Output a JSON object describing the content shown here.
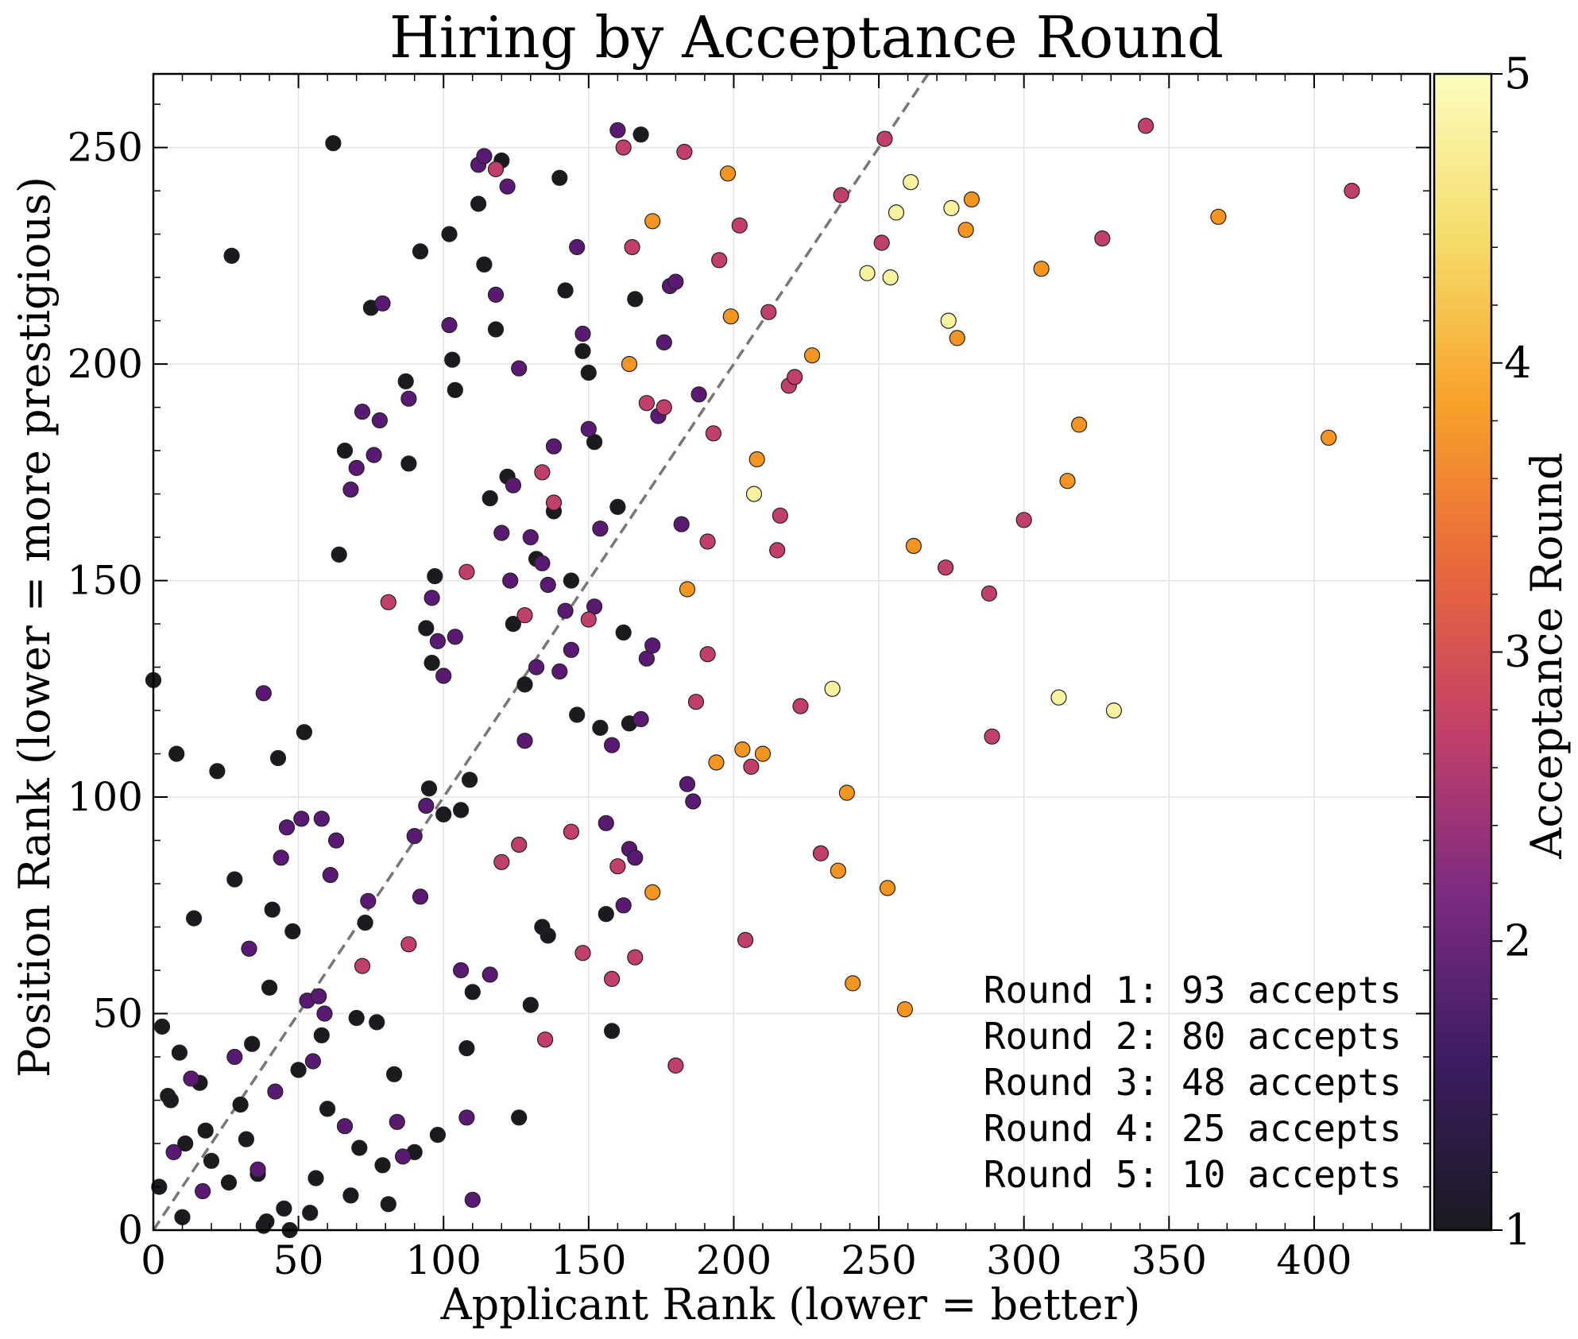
{
  "chart_data": {
    "type": "scatter",
    "title": "Hiring by Acceptance Round",
    "xlabel": "Applicant Rank (lower = better)",
    "ylabel": "Position Rank (lower = more prestigious)",
    "xlim": [
      0,
      440
    ],
    "ylim": [
      0,
      267
    ],
    "x_ticks": [
      0,
      50,
      100,
      150,
      200,
      250,
      300,
      350,
      400
    ],
    "y_ticks": [
      0,
      50,
      100,
      150,
      200,
      250
    ],
    "grid": true,
    "reference_line": {
      "style": "dashed",
      "description": "y = x diagonal"
    },
    "colorbar": {
      "label": "Acceptance Round",
      "range": [
        1,
        5
      ],
      "ticks": [
        1,
        2,
        3,
        4,
        5
      ],
      "colormap": "inferno",
      "stops": [
        "#1a1a1f",
        "#3b1c61",
        "#7a2a82",
        "#c13f6a",
        "#e8673c",
        "#f8a12a",
        "#f5dc6a",
        "#fcfdbf"
      ]
    },
    "annotation": [
      "Round 1: 93 accepts",
      "Round 2: 80 accepts",
      "Round 3: 48 accepts",
      "Round 4: 25 accepts",
      "Round 5: 10 accepts"
    ],
    "series": [
      {
        "round": 1,
        "color": "#1a1a1f",
        "points": [
          [
            0,
            127
          ],
          [
            3,
            47
          ],
          [
            2,
            10
          ],
          [
            5,
            31
          ],
          [
            6,
            30
          ],
          [
            9,
            41
          ],
          [
            11,
            20
          ],
          [
            10,
            3
          ],
          [
            14,
            72
          ],
          [
            16,
            34
          ],
          [
            18,
            23
          ],
          [
            20,
            16
          ],
          [
            22,
            106
          ],
          [
            26,
            11
          ],
          [
            28,
            81
          ],
          [
            30,
            29
          ],
          [
            32,
            21
          ],
          [
            34,
            43
          ],
          [
            36,
            13
          ],
          [
            38,
            1
          ],
          [
            39,
            2
          ],
          [
            40,
            56
          ],
          [
            41,
            74
          ],
          [
            43,
            109
          ],
          [
            45,
            5
          ],
          [
            47,
            0
          ],
          [
            48,
            69
          ],
          [
            50,
            37
          ],
          [
            52,
            115
          ],
          [
            54,
            4
          ],
          [
            56,
            12
          ],
          [
            58,
            45
          ],
          [
            60,
            28
          ],
          [
            62,
            251
          ],
          [
            64,
            156
          ],
          [
            66,
            180
          ],
          [
            68,
            8
          ],
          [
            70,
            49
          ],
          [
            71,
            19
          ],
          [
            73,
            71
          ],
          [
            75,
            213
          ],
          [
            77,
            48
          ],
          [
            79,
            15
          ],
          [
            81,
            6
          ],
          [
            83,
            36
          ],
          [
            87,
            196
          ],
          [
            88,
            177
          ],
          [
            90,
            18
          ],
          [
            92,
            226
          ],
          [
            94,
            139
          ],
          [
            95,
            102
          ],
          [
            96,
            131
          ],
          [
            97,
            151
          ],
          [
            98,
            22
          ],
          [
            100,
            96
          ],
          [
            102,
            230
          ],
          [
            103,
            201
          ],
          [
            104,
            194
          ],
          [
            106,
            97
          ],
          [
            108,
            42
          ],
          [
            109,
            104
          ],
          [
            110,
            55
          ],
          [
            112,
            237
          ],
          [
            114,
            223
          ],
          [
            116,
            169
          ],
          [
            118,
            208
          ],
          [
            120,
            247
          ],
          [
            122,
            174
          ],
          [
            124,
            140
          ],
          [
            126,
            26
          ],
          [
            128,
            126
          ],
          [
            130,
            52
          ],
          [
            132,
            155
          ],
          [
            134,
            70
          ],
          [
            136,
            68
          ],
          [
            138,
            166
          ],
          [
            140,
            243
          ],
          [
            142,
            217
          ],
          [
            144,
            150
          ],
          [
            146,
            119
          ],
          [
            148,
            203
          ],
          [
            150,
            198
          ],
          [
            152,
            182
          ],
          [
            154,
            116
          ],
          [
            156,
            73
          ],
          [
            158,
            46
          ],
          [
            160,
            167
          ],
          [
            162,
            138
          ],
          [
            164,
            117
          ],
          [
            166,
            215
          ],
          [
            168,
            253
          ],
          [
            27,
            225
          ],
          [
            8,
            110
          ]
        ]
      },
      {
        "round": 2,
        "color": "#5a1a73",
        "points": [
          [
            13,
            35
          ],
          [
            28,
            40
          ],
          [
            33,
            65
          ],
          [
            38,
            124
          ],
          [
            42,
            32
          ],
          [
            46,
            93
          ],
          [
            51,
            95
          ],
          [
            53,
            53
          ],
          [
            55,
            39
          ],
          [
            57,
            54
          ],
          [
            59,
            50
          ],
          [
            61,
            82
          ],
          [
            63,
            90
          ],
          [
            66,
            24
          ],
          [
            68,
            171
          ],
          [
            70,
            176
          ],
          [
            72,
            189
          ],
          [
            74,
            76
          ],
          [
            76,
            179
          ],
          [
            78,
            187
          ],
          [
            79,
            214
          ],
          [
            84,
            25
          ],
          [
            86,
            17
          ],
          [
            88,
            192
          ],
          [
            90,
            91
          ],
          [
            92,
            77
          ],
          [
            94,
            98
          ],
          [
            96,
            146
          ],
          [
            98,
            136
          ],
          [
            100,
            128
          ],
          [
            102,
            209
          ],
          [
            104,
            137
          ],
          [
            106,
            60
          ],
          [
            108,
            26
          ],
          [
            110,
            7
          ],
          [
            112,
            246
          ],
          [
            114,
            248
          ],
          [
            116,
            59
          ],
          [
            118,
            216
          ],
          [
            120,
            161
          ],
          [
            122,
            241
          ],
          [
            124,
            172
          ],
          [
            126,
            199
          ],
          [
            128,
            113
          ],
          [
            130,
            160
          ],
          [
            132,
            130
          ],
          [
            134,
            154
          ],
          [
            136,
            149
          ],
          [
            138,
            181
          ],
          [
            140,
            129
          ],
          [
            142,
            143
          ],
          [
            144,
            134
          ],
          [
            146,
            227
          ],
          [
            148,
            207
          ],
          [
            150,
            185
          ],
          [
            152,
            144
          ],
          [
            154,
            162
          ],
          [
            156,
            94
          ],
          [
            158,
            112
          ],
          [
            160,
            254
          ],
          [
            162,
            75
          ],
          [
            164,
            88
          ],
          [
            166,
            86
          ],
          [
            168,
            118
          ],
          [
            170,
            132
          ],
          [
            172,
            135
          ],
          [
            174,
            188
          ],
          [
            176,
            205
          ],
          [
            178,
            218
          ],
          [
            180,
            219
          ],
          [
            182,
            163
          ],
          [
            184,
            103
          ],
          [
            186,
            99
          ],
          [
            188,
            193
          ],
          [
            17,
            9
          ],
          [
            36,
            14
          ],
          [
            58,
            95
          ],
          [
            123,
            150
          ],
          [
            7,
            18
          ],
          [
            44,
            86
          ]
        ]
      },
      {
        "round": 3,
        "color": "#c13f6a",
        "points": [
          [
            72,
            61
          ],
          [
            81,
            145
          ],
          [
            88,
            66
          ],
          [
            108,
            152
          ],
          [
            120,
            85
          ],
          [
            118,
            245
          ],
          [
            126,
            89
          ],
          [
            128,
            142
          ],
          [
            134,
            175
          ],
          [
            135,
            44
          ],
          [
            138,
            168
          ],
          [
            144,
            92
          ],
          [
            148,
            64
          ],
          [
            150,
            141
          ],
          [
            158,
            58
          ],
          [
            160,
            84
          ],
          [
            162,
            250
          ],
          [
            166,
            63
          ],
          [
            170,
            191
          ],
          [
            176,
            190
          ],
          [
            180,
            38
          ],
          [
            183,
            249
          ],
          [
            187,
            122
          ],
          [
            191,
            133
          ],
          [
            193,
            184
          ],
          [
            195,
            224
          ],
          [
            202,
            232
          ],
          [
            204,
            67
          ],
          [
            206,
            107
          ],
          [
            212,
            212
          ],
          [
            215,
            157
          ],
          [
            216,
            165
          ],
          [
            219,
            195
          ],
          [
            221,
            197
          ],
          [
            223,
            121
          ],
          [
            230,
            87
          ],
          [
            237,
            239
          ],
          [
            251,
            228
          ],
          [
            252,
            252
          ],
          [
            273,
            153
          ],
          [
            288,
            147
          ],
          [
            289,
            114
          ],
          [
            300,
            164
          ],
          [
            327,
            229
          ],
          [
            342,
            255
          ],
          [
            413,
            240
          ],
          [
            191,
            159
          ],
          [
            165,
            227
          ]
        ]
      },
      {
        "round": 4,
        "color": "#f39520",
        "points": [
          [
            164,
            200
          ],
          [
            172,
            78
          ],
          [
            172,
            233
          ],
          [
            184,
            148
          ],
          [
            194,
            108
          ],
          [
            198,
            244
          ],
          [
            199,
            211
          ],
          [
            203,
            111
          ],
          [
            208,
            178
          ],
          [
            210,
            110
          ],
          [
            227,
            202
          ],
          [
            239,
            101
          ],
          [
            236,
            83
          ],
          [
            241,
            57
          ],
          [
            253,
            79
          ],
          [
            259,
            51
          ],
          [
            262,
            158
          ],
          [
            277,
            206
          ],
          [
            280,
            231
          ],
          [
            282,
            238
          ],
          [
            306,
            222
          ],
          [
            315,
            173
          ],
          [
            319,
            186
          ],
          [
            367,
            234
          ],
          [
            405,
            183
          ]
        ]
      },
      {
        "round": 5,
        "color": "#f7f29e",
        "points": [
          [
            207,
            170
          ],
          [
            234,
            125
          ],
          [
            246,
            221
          ],
          [
            254,
            220
          ],
          [
            256,
            235
          ],
          [
            261,
            242
          ],
          [
            274,
            210
          ],
          [
            275,
            236
          ],
          [
            312,
            123
          ],
          [
            331,
            120
          ]
        ]
      }
    ]
  }
}
